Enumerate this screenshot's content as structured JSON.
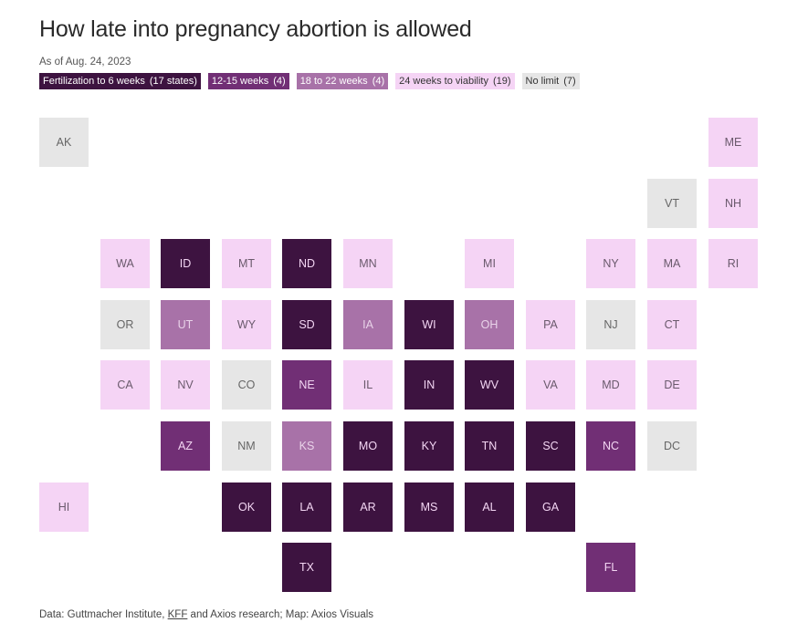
{
  "title": "How late into pregnancy abortion is allowed",
  "subtitle": "As of Aug. 24, 2023",
  "legend": [
    {
      "key": "c0",
      "label": "Fertilization to 6 weeks",
      "count": "(17 states)",
      "bg": "#3d1340",
      "fg": "#ffffff"
    },
    {
      "key": "c1",
      "label": "12-15 weeks",
      "count": "(4)",
      "bg": "#712f75",
      "fg": "#ffffff"
    },
    {
      "key": "c2",
      "label": "18 to 22 weeks",
      "count": "(4)",
      "bg": "#a872a8",
      "fg": "#ffffff"
    },
    {
      "key": "c3",
      "label": "24 weeks to viability",
      "count": "(19)",
      "bg": "#f5d4f5",
      "fg": "#333333"
    },
    {
      "key": "c4",
      "label": "No limit",
      "count": "(7)",
      "bg": "#e6e6e6",
      "fg": "#333333"
    }
  ],
  "tile_text_colors": {
    "c0": "#f3d6f3",
    "c1": "#f3d6f3",
    "c2": "#e9d3e9",
    "c3": "#6a5a6c",
    "c4": "#666666"
  },
  "states": [
    {
      "abbr": "AK",
      "row": 0,
      "col": 0,
      "cat": "c4"
    },
    {
      "abbr": "ME",
      "row": 0,
      "col": 11,
      "cat": "c3"
    },
    {
      "abbr": "VT",
      "row": 1,
      "col": 10,
      "cat": "c4"
    },
    {
      "abbr": "NH",
      "row": 1,
      "col": 11,
      "cat": "c3"
    },
    {
      "abbr": "WA",
      "row": 2,
      "col": 1,
      "cat": "c3"
    },
    {
      "abbr": "ID",
      "row": 2,
      "col": 2,
      "cat": "c0"
    },
    {
      "abbr": "MT",
      "row": 2,
      "col": 3,
      "cat": "c3"
    },
    {
      "abbr": "ND",
      "row": 2,
      "col": 4,
      "cat": "c0"
    },
    {
      "abbr": "MN",
      "row": 2,
      "col": 5,
      "cat": "c3"
    },
    {
      "abbr": "MI",
      "row": 2,
      "col": 7,
      "cat": "c3"
    },
    {
      "abbr": "NY",
      "row": 2,
      "col": 9,
      "cat": "c3"
    },
    {
      "abbr": "MA",
      "row": 2,
      "col": 10,
      "cat": "c3"
    },
    {
      "abbr": "RI",
      "row": 2,
      "col": 11,
      "cat": "c3"
    },
    {
      "abbr": "OR",
      "row": 3,
      "col": 1,
      "cat": "c4"
    },
    {
      "abbr": "UT",
      "row": 3,
      "col": 2,
      "cat": "c2"
    },
    {
      "abbr": "WY",
      "row": 3,
      "col": 3,
      "cat": "c3"
    },
    {
      "abbr": "SD",
      "row": 3,
      "col": 4,
      "cat": "c0"
    },
    {
      "abbr": "IA",
      "row": 3,
      "col": 5,
      "cat": "c2"
    },
    {
      "abbr": "WI",
      "row": 3,
      "col": 6,
      "cat": "c0"
    },
    {
      "abbr": "OH",
      "row": 3,
      "col": 7,
      "cat": "c2"
    },
    {
      "abbr": "PA",
      "row": 3,
      "col": 8,
      "cat": "c3"
    },
    {
      "abbr": "NJ",
      "row": 3,
      "col": 9,
      "cat": "c4"
    },
    {
      "abbr": "CT",
      "row": 3,
      "col": 10,
      "cat": "c3"
    },
    {
      "abbr": "CA",
      "row": 4,
      "col": 1,
      "cat": "c3"
    },
    {
      "abbr": "NV",
      "row": 4,
      "col": 2,
      "cat": "c3"
    },
    {
      "abbr": "CO",
      "row": 4,
      "col": 3,
      "cat": "c4"
    },
    {
      "abbr": "NE",
      "row": 4,
      "col": 4,
      "cat": "c1"
    },
    {
      "abbr": "IL",
      "row": 4,
      "col": 5,
      "cat": "c3"
    },
    {
      "abbr": "IN",
      "row": 4,
      "col": 6,
      "cat": "c0"
    },
    {
      "abbr": "WV",
      "row": 4,
      "col": 7,
      "cat": "c0"
    },
    {
      "abbr": "VA",
      "row": 4,
      "col": 8,
      "cat": "c3"
    },
    {
      "abbr": "MD",
      "row": 4,
      "col": 9,
      "cat": "c3"
    },
    {
      "abbr": "DE",
      "row": 4,
      "col": 10,
      "cat": "c3"
    },
    {
      "abbr": "AZ",
      "row": 5,
      "col": 2,
      "cat": "c1"
    },
    {
      "abbr": "NM",
      "row": 5,
      "col": 3,
      "cat": "c4"
    },
    {
      "abbr": "KS",
      "row": 5,
      "col": 4,
      "cat": "c2"
    },
    {
      "abbr": "MO",
      "row": 5,
      "col": 5,
      "cat": "c0"
    },
    {
      "abbr": "KY",
      "row": 5,
      "col": 6,
      "cat": "c0"
    },
    {
      "abbr": "TN",
      "row": 5,
      "col": 7,
      "cat": "c0"
    },
    {
      "abbr": "SC",
      "row": 5,
      "col": 8,
      "cat": "c0"
    },
    {
      "abbr": "NC",
      "row": 5,
      "col": 9,
      "cat": "c1"
    },
    {
      "abbr": "DC",
      "row": 5,
      "col": 10,
      "cat": "c4"
    },
    {
      "abbr": "HI",
      "row": 6,
      "col": 0,
      "cat": "c3"
    },
    {
      "abbr": "OK",
      "row": 6,
      "col": 3,
      "cat": "c0"
    },
    {
      "abbr": "LA",
      "row": 6,
      "col": 4,
      "cat": "c0"
    },
    {
      "abbr": "AR",
      "row": 6,
      "col": 5,
      "cat": "c0"
    },
    {
      "abbr": "MS",
      "row": 6,
      "col": 6,
      "cat": "c0"
    },
    {
      "abbr": "AL",
      "row": 6,
      "col": 7,
      "cat": "c0"
    },
    {
      "abbr": "GA",
      "row": 6,
      "col": 8,
      "cat": "c0"
    },
    {
      "abbr": "TX",
      "row": 7,
      "col": 4,
      "cat": "c0"
    },
    {
      "abbr": "FL",
      "row": 7,
      "col": 9,
      "cat": "c1"
    }
  ],
  "source": {
    "prefix": "Data: Guttmacher Institute, ",
    "link": "KFF",
    "suffix": " and Axios research; Map: Axios Visuals"
  }
}
